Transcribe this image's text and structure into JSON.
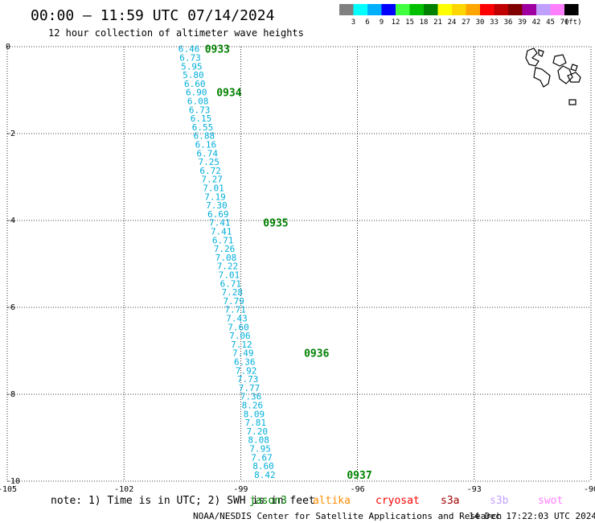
{
  "header": {
    "title": "00:00 — 11:59 UTC 07/14/2024",
    "subtitle": "12 hour collection of altimeter wave heights"
  },
  "legend": {
    "labels": [
      "3",
      "6",
      "9",
      "12",
      "15",
      "18",
      "21",
      "24",
      "27",
      "30",
      "33",
      "36",
      "39",
      "42",
      "45",
      "70"
    ],
    "unit": "(ft)",
    "colors": [
      "#808080",
      "#00ffff",
      "#00b0ff",
      "#0000ff",
      "#40ff40",
      "#00c000",
      "#008000",
      "#ffff00",
      "#ffd700",
      "#ffa500",
      "#ff0000",
      "#c00000",
      "#800000",
      "#a000a0",
      "#c0a0ff",
      "#ff80ff",
      "#000000"
    ]
  },
  "note": "note: 1) Time is in UTC; 2) SWH is in feet",
  "satellites": [
    {
      "name": "jason3",
      "color": "#008000"
    },
    {
      "name": "altika",
      "color": "#ff8c00"
    },
    {
      "name": "cryosat",
      "color": "#ff0000"
    },
    {
      "name": "s3a",
      "color": "#a00000"
    },
    {
      "name": "s3b",
      "color": "#c0a0ff"
    },
    {
      "name": "swot",
      "color": "#ff80ff"
    }
  ],
  "footer": {
    "credit": "NOAA/NESDIS Center for Satellite Applications and Research",
    "timestamp": "14 Dec 17:22:03 UTC 2024"
  },
  "chart_data": {
    "type": "scatter",
    "xlim": [
      -105,
      -90
    ],
    "ylim": [
      -10,
      0
    ],
    "x_ticks": [
      "-105",
      "-102",
      "-99",
      "-96",
      "-93",
      "-90"
    ],
    "y_ticks": [
      "0",
      "-2",
      "-4",
      "-6",
      "-8",
      "-10"
    ],
    "grid": true,
    "series": [
      {
        "name": "jason3",
        "color": "#00aeda",
        "points": [
          {
            "lon": -100.33,
            "lat": -0.05,
            "label": "6.46"
          },
          {
            "lon": -100.3,
            "lat": -0.25,
            "label": "6.73"
          },
          {
            "lon": -100.26,
            "lat": -0.45,
            "label": "5.95"
          },
          {
            "lon": -100.22,
            "lat": -0.65,
            "label": "5.80"
          },
          {
            "lon": -100.18,
            "lat": -0.85,
            "label": "6.60"
          },
          {
            "lon": -100.14,
            "lat": -1.05,
            "label": "6.90"
          },
          {
            "lon": -100.1,
            "lat": -1.25,
            "label": "6.08"
          },
          {
            "lon": -100.06,
            "lat": -1.45,
            "label": "6.73"
          },
          {
            "lon": -100.02,
            "lat": -1.65,
            "label": "6.15"
          },
          {
            "lon": -99.98,
            "lat": -1.85,
            "label": "6.55"
          },
          {
            "lon": -99.94,
            "lat": -2.05,
            "label": "6.88"
          },
          {
            "lon": -99.9,
            "lat": -2.25,
            "label": "6.16"
          },
          {
            "lon": -99.86,
            "lat": -2.45,
            "label": "6.74"
          },
          {
            "lon": -99.82,
            "lat": -2.65,
            "label": "7.25"
          },
          {
            "lon": -99.78,
            "lat": -2.85,
            "label": "6.72"
          },
          {
            "lon": -99.74,
            "lat": -3.05,
            "label": "7.27"
          },
          {
            "lon": -99.7,
            "lat": -3.25,
            "label": "7.01"
          },
          {
            "lon": -99.66,
            "lat": -3.45,
            "label": "7.19"
          },
          {
            "lon": -99.62,
            "lat": -3.65,
            "label": "7.30"
          },
          {
            "lon": -99.58,
            "lat": -3.85,
            "label": "6.69"
          },
          {
            "lon": -99.54,
            "lat": -4.05,
            "label": "7.41"
          },
          {
            "lon": -99.5,
            "lat": -4.25,
            "label": "7.41"
          },
          {
            "lon": -99.46,
            "lat": -4.45,
            "label": "6.71"
          },
          {
            "lon": -99.42,
            "lat": -4.65,
            "label": "7.26"
          },
          {
            "lon": -99.38,
            "lat": -4.85,
            "label": "7.08"
          },
          {
            "lon": -99.34,
            "lat": -5.05,
            "label": "7.22"
          },
          {
            "lon": -99.3,
            "lat": -5.25,
            "label": "7.01"
          },
          {
            "lon": -99.26,
            "lat": -5.45,
            "label": "6.71"
          },
          {
            "lon": -99.22,
            "lat": -5.65,
            "label": "7.28"
          },
          {
            "lon": -99.18,
            "lat": -5.85,
            "label": "7.79"
          },
          {
            "lon": -99.14,
            "lat": -6.05,
            "label": "7.71"
          },
          {
            "lon": -99.1,
            "lat": -6.25,
            "label": "7.43"
          },
          {
            "lon": -99.06,
            "lat": -6.45,
            "label": "7.60"
          },
          {
            "lon": -99.02,
            "lat": -6.65,
            "label": "7.06"
          },
          {
            "lon": -98.98,
            "lat": -6.85,
            "label": "7.12"
          },
          {
            "lon": -98.94,
            "lat": -7.05,
            "label": "7.49"
          },
          {
            "lon": -98.9,
            "lat": -7.25,
            "label": "6.36"
          },
          {
            "lon": -98.86,
            "lat": -7.45,
            "label": "7.92"
          },
          {
            "lon": -98.82,
            "lat": -7.65,
            "label": "7.73"
          },
          {
            "lon": -98.78,
            "lat": -7.85,
            "label": "7.77"
          },
          {
            "lon": -98.74,
            "lat": -8.05,
            "label": "7.36"
          },
          {
            "lon": -98.7,
            "lat": -8.25,
            "label": "8.26"
          },
          {
            "lon": -98.66,
            "lat": -8.45,
            "label": "8.09"
          },
          {
            "lon": -98.62,
            "lat": -8.65,
            "label": "7.81"
          },
          {
            "lon": -98.58,
            "lat": -8.85,
            "label": "7.20"
          },
          {
            "lon": -98.54,
            "lat": -9.05,
            "label": "8.08"
          },
          {
            "lon": -98.5,
            "lat": -9.25,
            "label": "7.95"
          },
          {
            "lon": -98.46,
            "lat": -9.45,
            "label": "7.67"
          },
          {
            "lon": -98.42,
            "lat": -9.65,
            "label": "8.60"
          },
          {
            "lon": -98.38,
            "lat": -9.85,
            "label": "8.42"
          }
        ]
      }
    ],
    "time_labels": [
      {
        "label": "0933",
        "lon": -99.6,
        "lat": -0.05
      },
      {
        "label": "0934",
        "lon": -99.3,
        "lat": -1.05
      },
      {
        "lon": -98.1,
        "lat": -4.05,
        "label": "0935"
      },
      {
        "label": "0936",
        "lon": -97.05,
        "lat": -7.05
      },
      {
        "label": "0937",
        "lon": -95.95,
        "lat": -9.85
      }
    ]
  }
}
